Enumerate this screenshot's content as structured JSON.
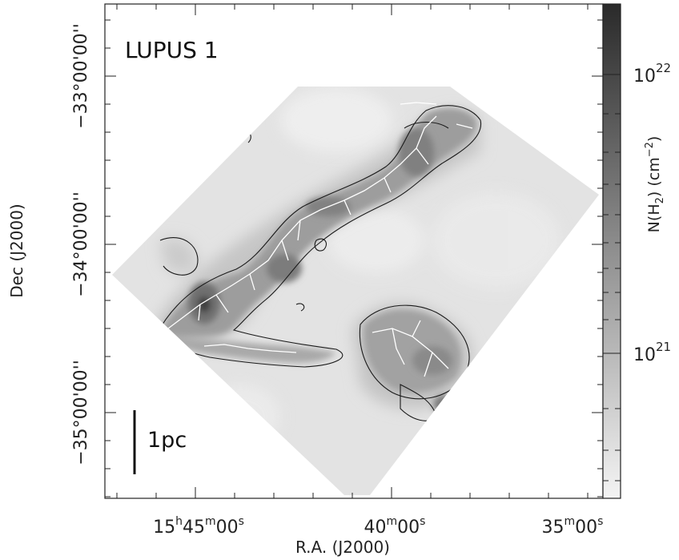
{
  "map": {
    "title": "LUPUS 1",
    "scale_bar_label": "1pc",
    "x_axis": {
      "label": "R.A. (J2000)",
      "ticks": [
        {
          "h": "15",
          "m": "45",
          "s": "00",
          "show_hours": true
        },
        {
          "h": "",
          "m": "40",
          "s": "00",
          "show_hours": false
        },
        {
          "h": "",
          "m": "35",
          "s": "00",
          "show_hours": false
        }
      ]
    },
    "y_axis": {
      "label": "Dec (J2000)",
      "ticks": [
        "−33°00'00''",
        "−34°00'00''",
        "−35°00'00''"
      ]
    },
    "colorbar": {
      "label_prefix": "N(H",
      "label_sub": "2",
      "label_mid": ") (cm",
      "label_sup": "−2",
      "label_suffix": ")",
      "ticks": [
        {
          "base": "10",
          "exp": "22"
        },
        {
          "base": "10",
          "exp": "21"
        }
      ],
      "color_high": "#2a2a2a",
      "color_low": "#f4f4f4"
    }
  }
}
